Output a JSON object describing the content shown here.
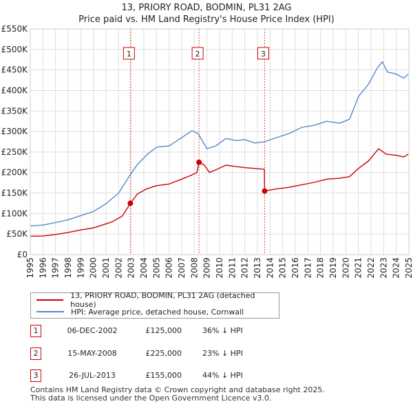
{
  "title": {
    "line1": "13, PRIORY ROAD, BODMIN, PL31 2AG",
    "line2": "Price paid vs. HM Land Registry's House Price Index (HPI)"
  },
  "colors": {
    "property": "#cc0000",
    "hpi": "#5588cc",
    "grid": "#dddddd",
    "marker_line": "#cc0000"
  },
  "legend": {
    "property_label": "13, PRIORY ROAD, BODMIN, PL31 2AG (detached house)",
    "hpi_label": "HPI: Average price, detached house, Cornwall"
  },
  "sales": [
    {
      "num": "1",
      "date": "06-DEC-2002",
      "price": "£125,000",
      "hpi": "36% ↓ HPI"
    },
    {
      "num": "2",
      "date": "15-MAY-2008",
      "price": "£225,000",
      "hpi": "23% ↓ HPI"
    },
    {
      "num": "3",
      "date": "26-JUL-2013",
      "price": "£155,000",
      "hpi": "44% ↓ HPI"
    }
  ],
  "footer": {
    "line1": "Contains HM Land Registry data © Crown copyright and database right 2025.",
    "line2": "This data is licensed under the Open Government Licence v3.0."
  },
  "chart_data": {
    "type": "line",
    "title": "13, PRIORY ROAD, BODMIN, PL31 2AG — Price paid vs. HM Land Registry's House Price Index (HPI)",
    "xlabel": "",
    "ylabel": "",
    "xlim": [
      1995,
      2025
    ],
    "ylim": [
      0,
      550000
    ],
    "x_ticks": [
      "1995",
      "1996",
      "1997",
      "1998",
      "1999",
      "2000",
      "2001",
      "2002",
      "2003",
      "2004",
      "2005",
      "2006",
      "2007",
      "2008",
      "2009",
      "2010",
      "2011",
      "2012",
      "2013",
      "2014",
      "2015",
      "2016",
      "2017",
      "2018",
      "2019",
      "2020",
      "2021",
      "2022",
      "2023",
      "2024",
      "2025"
    ],
    "y_ticks": [
      {
        "value": 0,
        "label": "£0"
      },
      {
        "value": 50000,
        "label": "£50K"
      },
      {
        "value": 100000,
        "label": "£100K"
      },
      {
        "value": 150000,
        "label": "£150K"
      },
      {
        "value": 200000,
        "label": "£200K"
      },
      {
        "value": 250000,
        "label": "£250K"
      },
      {
        "value": 300000,
        "label": "£300K"
      },
      {
        "value": 350000,
        "label": "£350K"
      },
      {
        "value": 400000,
        "label": "£400K"
      },
      {
        "value": 450000,
        "label": "£450K"
      },
      {
        "value": 500000,
        "label": "£500K"
      },
      {
        "value": 550000,
        "label": "£550K"
      }
    ],
    "series": [
      {
        "name": "13, PRIORY ROAD, BODMIN, PL31 2AG (detached house)",
        "color": "#cc0000",
        "points": [
          [
            1995.0,
            45000
          ],
          [
            1996.0,
            45500
          ],
          [
            1997.0,
            49000
          ],
          [
            1998.0,
            54000
          ],
          [
            1999.0,
            60000
          ],
          [
            2000.0,
            65000
          ],
          [
            2000.7,
            72000
          ],
          [
            2001.5,
            80000
          ],
          [
            2002.3,
            94000
          ],
          [
            2002.93,
            125000
          ],
          [
            2003.5,
            148000
          ],
          [
            2004.2,
            160000
          ],
          [
            2005.0,
            168000
          ],
          [
            2006.0,
            172000
          ],
          [
            2007.0,
            184000
          ],
          [
            2007.8,
            194000
          ],
          [
            2008.2,
            200000
          ],
          [
            2008.37,
            225000
          ],
          [
            2008.8,
            218000
          ],
          [
            2009.2,
            200000
          ],
          [
            2009.8,
            208000
          ],
          [
            2010.5,
            218000
          ],
          [
            2011.2,
            215000
          ],
          [
            2012.0,
            212000
          ],
          [
            2012.8,
            210000
          ],
          [
            2013.55,
            208000
          ],
          [
            2013.57,
            155000
          ],
          [
            2014.5,
            160000
          ],
          [
            2015.5,
            164000
          ],
          [
            2016.5,
            170000
          ],
          [
            2017.5,
            176000
          ],
          [
            2018.5,
            184000
          ],
          [
            2019.5,
            186000
          ],
          [
            2020.3,
            190000
          ],
          [
            2021.0,
            210000
          ],
          [
            2021.8,
            228000
          ],
          [
            2022.6,
            258000
          ],
          [
            2023.2,
            245000
          ],
          [
            2024.0,
            242000
          ],
          [
            2024.6,
            238000
          ],
          [
            2024.95,
            245000
          ]
        ]
      },
      {
        "name": "HPI: Average price, detached house, Cornwall",
        "color": "#5588cc",
        "points": [
          [
            1995.0,
            70000
          ],
          [
            1996.0,
            72000
          ],
          [
            1997.0,
            78000
          ],
          [
            1998.0,
            85000
          ],
          [
            1999.0,
            95000
          ],
          [
            2000.0,
            105000
          ],
          [
            2001.0,
            124000
          ],
          [
            2002.0,
            150000
          ],
          [
            2002.93,
            195000
          ],
          [
            2003.5,
            220000
          ],
          [
            2004.3,
            245000
          ],
          [
            2005.0,
            262000
          ],
          [
            2006.0,
            265000
          ],
          [
            2007.0,
            285000
          ],
          [
            2007.8,
            302000
          ],
          [
            2008.3,
            295000
          ],
          [
            2009.0,
            258000
          ],
          [
            2009.7,
            265000
          ],
          [
            2010.5,
            283000
          ],
          [
            2011.3,
            278000
          ],
          [
            2012.0,
            280000
          ],
          [
            2012.8,
            272000
          ],
          [
            2013.57,
            275000
          ],
          [
            2014.5,
            285000
          ],
          [
            2015.5,
            295000
          ],
          [
            2016.5,
            310000
          ],
          [
            2017.5,
            315000
          ],
          [
            2018.5,
            325000
          ],
          [
            2019.5,
            320000
          ],
          [
            2020.3,
            330000
          ],
          [
            2021.0,
            385000
          ],
          [
            2021.8,
            415000
          ],
          [
            2022.5,
            455000
          ],
          [
            2022.9,
            470000
          ],
          [
            2023.3,
            445000
          ],
          [
            2024.0,
            440000
          ],
          [
            2024.6,
            430000
          ],
          [
            2024.95,
            440000
          ]
        ]
      }
    ],
    "sale_markers": [
      {
        "num": "1",
        "x": 2002.93,
        "y": 125000
      },
      {
        "num": "2",
        "x": 2008.37,
        "y": 225000
      },
      {
        "num": "3",
        "x": 2013.57,
        "y": 155000
      }
    ]
  }
}
